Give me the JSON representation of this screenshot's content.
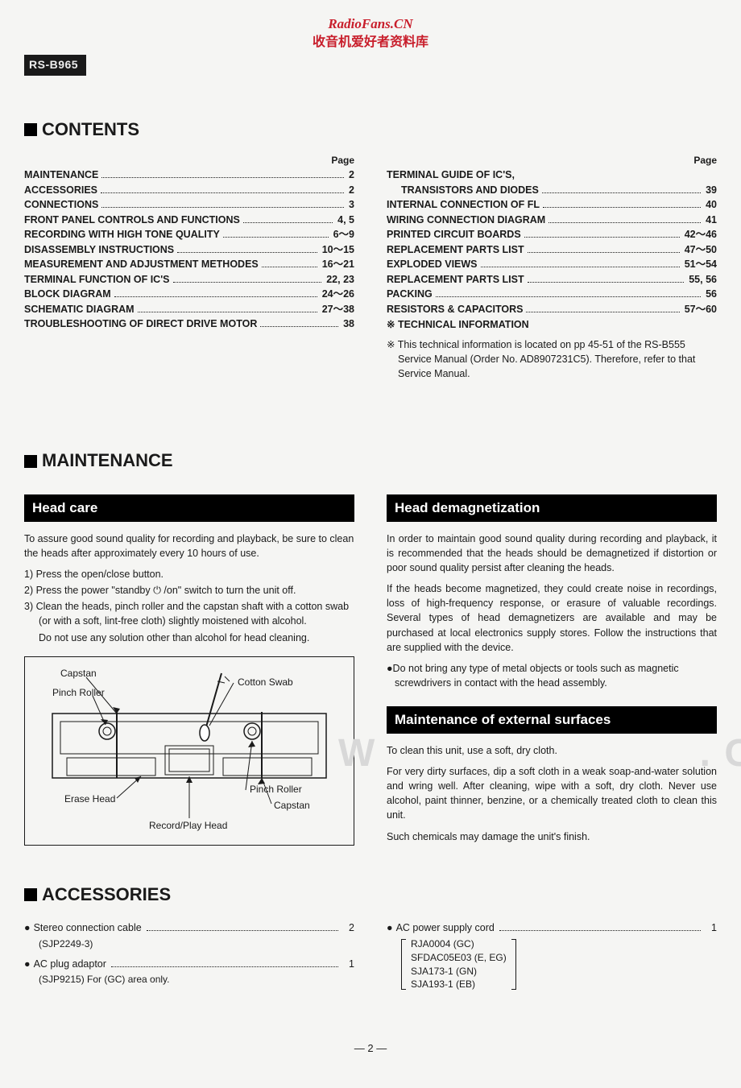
{
  "watermark": {
    "line1": "RadioFans.CN",
    "line2": "收音机爱好者资料库"
  },
  "model": "RS-B965",
  "sections": {
    "contents": "CONTENTS",
    "maintenance": "MAINTENANCE",
    "accessories": "ACCESSORIES"
  },
  "toc": {
    "page_header": "Page",
    "left": [
      {
        "label": "MAINTENANCE",
        "page": "2"
      },
      {
        "label": "ACCESSORIES",
        "page": "2"
      },
      {
        "label": "CONNECTIONS",
        "page": "3"
      },
      {
        "label": "FRONT PANEL CONTROLS AND FUNCTIONS",
        "page": "4, 5"
      },
      {
        "label": "RECORDING WITH HIGH TONE QUALITY",
        "page": "6～9"
      },
      {
        "label": "DISASSEMBLY INSTRUCTIONS",
        "page": "10～15"
      },
      {
        "label": "MEASUREMENT AND ADJUSTMENT METHODES",
        "page": "16～21"
      },
      {
        "label": "TERMINAL FUNCTION OF IC'S",
        "page": "22, 23"
      },
      {
        "label": "BLOCK DIAGRAM",
        "page": "24～26"
      },
      {
        "label": "SCHEMATIC DIAGRAM",
        "page": "27～38"
      },
      {
        "label": "TROUBLESHOOTING OF DIRECT DRIVE MOTOR",
        "page": "38"
      }
    ],
    "right_header": "TERMINAL GUIDE OF IC'S,",
    "right": [
      {
        "label": "TRANSISTORS AND DIODES",
        "page": "39",
        "indent": true
      },
      {
        "label": "INTERNAL CONNECTION OF FL",
        "page": "40"
      },
      {
        "label": "WIRING CONNECTION DIAGRAM",
        "page": "41"
      },
      {
        "label": "PRINTED CIRCUIT BOARDS",
        "page": "42～46"
      },
      {
        "label": "REPLACEMENT PARTS LIST",
        "page": "47～50"
      },
      {
        "label": "EXPLODED VIEWS",
        "page": "51～54"
      },
      {
        "label": "REPLACEMENT PARTS LIST",
        "page": "55, 56"
      },
      {
        "label": "PACKING",
        "page": "56"
      },
      {
        "label": "RESISTORS & CAPACITORS",
        "page": "57～60"
      }
    ],
    "tech_info_label": "※ TECHNICAL INFORMATION",
    "tech_info_note": "※ This technical information is located on pp 45-51 of the RS-B555 Service Manual (Order No. AD8907231C5). Therefore, refer to that Service Manual."
  },
  "maintenance": {
    "head_care": {
      "title": "Head care",
      "intro": "To assure good sound quality for recording and playback, be sure to clean the heads after approximately every 10 hours of use.",
      "steps": [
        "1)  Press the open/close button.",
        "2)  Press the power \"standby ⏻ /on\" switch to turn the unit off.",
        "3)  Clean the heads, pinch roller and the capstan shaft with a cotton swab (or with a soft, lint-free cloth) slightly moistened with alcohol."
      ],
      "note": "Do not use any solution other than alcohol for head cleaning.",
      "diagram_labels": {
        "capstan": "Capstan",
        "cotton_swab": "Cotton Swab",
        "pinch_roller": "Pinch Roller",
        "erase_head": "Erase Head",
        "record_play_head": "Record/Play Head"
      }
    },
    "demag": {
      "title": "Head demagnetization",
      "p1": "In order to maintain good sound quality during recording and playback, it is recommended that the heads should be demagnetized if distortion or poor sound quality persist after cleaning the heads.",
      "p2": "If the heads become magnetized, they could create noise in recordings, loss of high-frequency response, or erasure of valuable recordings. Several types of head demagnetizers are available and may be purchased at local electronics supply stores. Follow the instructions that are supplied with the device.",
      "bullet": "●Do not bring any type of metal objects or tools such as magnetic screwdrivers in contact with the head assembly."
    },
    "surfaces": {
      "title": "Maintenance of external surfaces",
      "p1": "To clean this unit, use a soft, dry cloth.",
      "p2": "For very dirty surfaces, dip a soft cloth in a weak soap-and-water solution and wring well. After cleaning, wipe with a soft, dry cloth. Never use alcohol, paint thinner, benzine, or a chemically treated cloth to clean this unit.",
      "p3": "Such chemicals may damage the unit's finish."
    }
  },
  "accessories": {
    "left": [
      {
        "label": "Stereo connection cable",
        "qty": "2",
        "sub": "(SJP2249-3)"
      },
      {
        "label": "AC plug adaptor",
        "qty": "1",
        "sub": "(SJP9215)    For (GC) area only."
      }
    ],
    "right": {
      "cord": {
        "label": "AC power supply cord",
        "qty": "1"
      },
      "parts": [
        "RJA0004 (GC)",
        "SFDAC05E03 (E, EG)",
        "SJA173-1 (GN)",
        "SJA193-1 (EB)"
      ]
    }
  },
  "page_number": "— 2 —",
  "side_watermark_left": "W",
  "side_watermark_right": ". C"
}
